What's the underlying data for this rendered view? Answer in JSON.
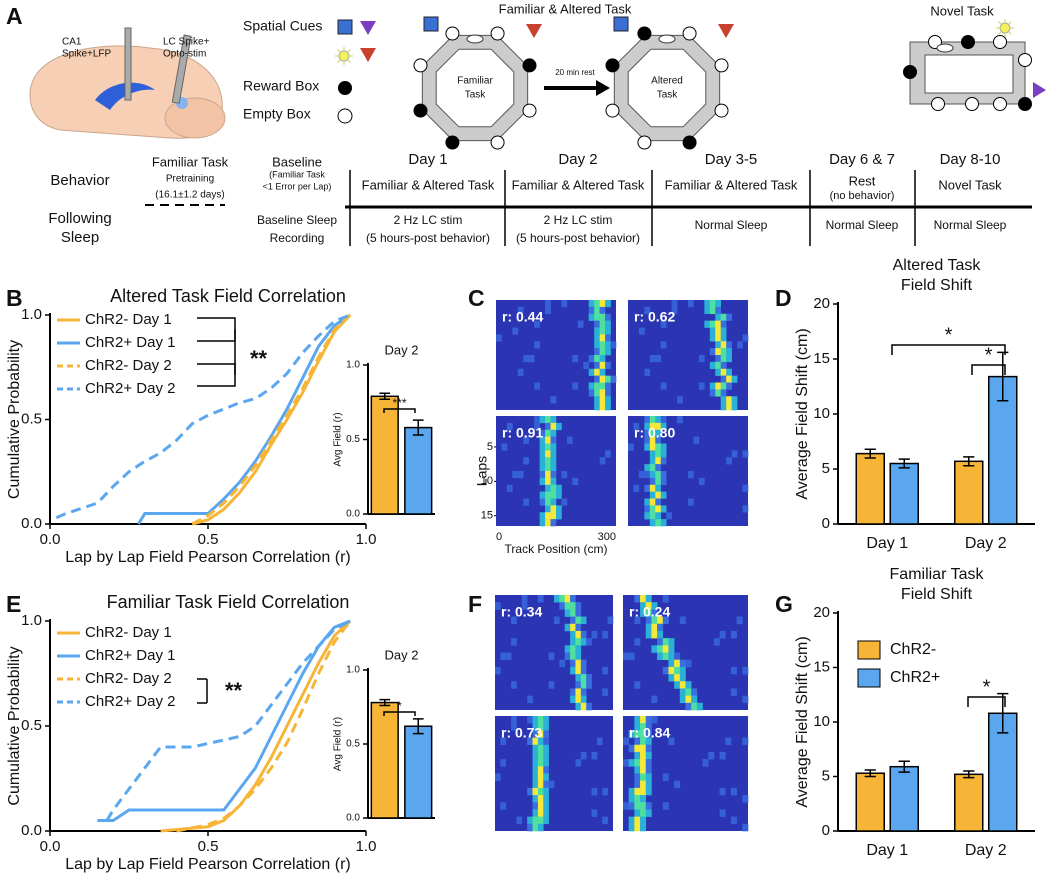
{
  "panel_labels": [
    "A",
    "B",
    "C",
    "D",
    "E",
    "F",
    "G"
  ],
  "panel_a": {
    "probe1": [
      "CA1",
      "Spike+LFP"
    ],
    "probe2": [
      "LC Spike+",
      "Opto-stim"
    ],
    "cues_label": "Spatial Cues",
    "reward_label": "Reward Box",
    "empty_label": "Empty Box",
    "task_title": "Familiar & Altered Task",
    "familiar": [
      "Familiar",
      "Task"
    ],
    "rest": "20 min rest",
    "altered": [
      "Altered",
      "Task"
    ],
    "novel": "Novel Task",
    "rows": [
      "Behavior",
      "Following",
      "Sleep"
    ],
    "timeline": [
      {
        "header": [
          "Familiar Task",
          "Pretraining",
          "(16.1±1.2 days)"
        ],
        "behavior": [],
        "sleep": []
      },
      {
        "header": [
          "Baseline",
          "(Familiar Task",
          "<1 Error per Lap)"
        ],
        "behavior": [],
        "sleep": [
          "Baseline Sleep",
          "Recording"
        ]
      },
      {
        "header": [
          "Day 1"
        ],
        "behavior": [
          "Familiar & Altered Task"
        ],
        "sleep": [
          "2 Hz LC stim",
          "(5 hours-post behavior)"
        ]
      },
      {
        "header": [
          "Day 2"
        ],
        "behavior": [
          "Familiar & Altered Task"
        ],
        "sleep": [
          "2 Hz LC stim",
          "(5 hours-post behavior)"
        ]
      },
      {
        "header": [
          "Day 3-5"
        ],
        "behavior": [
          "Familiar & Altered Task"
        ],
        "sleep": [
          "Normal Sleep"
        ]
      },
      {
        "header": [
          "Day 6 & 7"
        ],
        "behavior": [
          "Rest",
          "(no behavior)"
        ],
        "sleep": [
          "Normal Sleep"
        ]
      },
      {
        "header": [
          "Day 8-10"
        ],
        "behavior": [
          "Novel Task"
        ],
        "sleep": [
          "Normal Sleep"
        ]
      }
    ]
  },
  "heatmaps": {
    "C": {
      "r_labels": [
        "r: 0.44",
        "r: 0.62",
        "r: 0.91",
        "r: 0.80"
      ],
      "ylabel": "Laps",
      "yticks": [
        5,
        10,
        15
      ],
      "xticks": [
        0,
        300
      ],
      "xlabel": "Track Position (cm)"
    },
    "F": {
      "r_labels": [
        "r: 0.34",
        "r: 0.24",
        "r: 0.73",
        "r: 0.84"
      ]
    }
  },
  "chart_data": [
    {
      "type": "line",
      "title": "Altered Task Field Correlation",
      "xlabel": "Lap by Lap Field Pearson Correlation (r)",
      "ylabel": "Cumulative Probability",
      "xlim": [
        0,
        1
      ],
      "xticks": [
        {
          "value": 0,
          "label": "0.0"
        },
        {
          "value": 0.5,
          "label": "0.5"
        },
        {
          "value": 1,
          "label": "1.0"
        }
      ],
      "ylim": [
        0,
        1
      ],
      "yticks": [
        {
          "value": 0,
          "label": "0.0"
        },
        {
          "value": 0.5,
          "label": "0.5"
        },
        {
          "value": 1,
          "label": "1.0"
        }
      ],
      "annotations": [
        "**"
      ],
      "series": [
        {
          "name": "ChR2- Day 1",
          "color": "#f7b538",
          "dash": false,
          "x": [
            0.45,
            0.5,
            0.55,
            0.6,
            0.65,
            0.7,
            0.75,
            0.8,
            0.85,
            0.9,
            0.95
          ],
          "values": [
            0,
            0.02,
            0.07,
            0.15,
            0.25,
            0.38,
            0.5,
            0.63,
            0.78,
            0.92,
            1
          ]
        },
        {
          "name": "ChR2+ Day 1",
          "color": "#5aa7f0",
          "dash": false,
          "x": [
            0.28,
            0.3,
            0.5,
            0.55,
            0.6,
            0.65,
            0.7,
            0.75,
            0.8,
            0.85,
            0.9,
            0.95
          ],
          "values": [
            0,
            0.05,
            0.05,
            0.12,
            0.2,
            0.3,
            0.42,
            0.55,
            0.7,
            0.85,
            0.95,
            1
          ]
        },
        {
          "name": "ChR2- Day 2",
          "color": "#f7b538",
          "dash": true,
          "x": [
            0.45,
            0.5,
            0.55,
            0.6,
            0.65,
            0.7,
            0.75,
            0.8,
            0.85,
            0.9,
            0.95
          ],
          "values": [
            0,
            0.04,
            0.1,
            0.18,
            0.28,
            0.4,
            0.52,
            0.65,
            0.8,
            0.93,
            1
          ]
        },
        {
          "name": "ChR2+ Day 2",
          "color": "#5aa7f0",
          "dash": true,
          "x": [
            0.02,
            0.05,
            0.15,
            0.2,
            0.25,
            0.3,
            0.35,
            0.4,
            0.45,
            0.5,
            0.55,
            0.6,
            0.65,
            0.7,
            0.75,
            0.8,
            0.85,
            0.9,
            0.95
          ],
          "values": [
            0.03,
            0.05,
            0.1,
            0.18,
            0.25,
            0.3,
            0.34,
            0.4,
            0.48,
            0.52,
            0.55,
            0.58,
            0.6,
            0.65,
            0.72,
            0.82,
            0.9,
            0.97,
            1
          ]
        }
      ]
    },
    {
      "type": "bar",
      "title": "Day 2",
      "ylabel": "Avg Field (r)",
      "values": [
        0.79,
        0.58
      ],
      "errors": [
        0.02,
        0.05
      ],
      "colors": [
        "#f7b538",
        "#5aa7f0"
      ],
      "ylim": [
        0,
        1
      ],
      "yticks": [
        {
          "value": 0,
          "label": "0.0"
        },
        {
          "value": 0.5,
          "label": "0.5"
        },
        {
          "value": 1,
          "label": "1.0"
        }
      ],
      "annotations": [
        "***"
      ]
    },
    {
      "type": "bar",
      "title": [
        "Altered Task",
        "Field Shift"
      ],
      "ylabel": "Average Field Shift (cm)",
      "categories": [
        "Day 1",
        "Day 2"
      ],
      "legend": false,
      "series": [
        {
          "name": "ChR2-",
          "color": "#f7b538",
          "values": [
            6.4,
            5.7
          ],
          "errors": [
            0.4,
            0.4
          ]
        },
        {
          "name": "ChR2+",
          "color": "#5aa7f0",
          "values": [
            5.5,
            13.4
          ],
          "errors": [
            0.4,
            2.2
          ]
        }
      ],
      "ylim": [
        0,
        20
      ],
      "yticks": [
        0,
        5,
        10,
        15,
        20
      ],
      "annotations": [
        "*",
        "*"
      ]
    },
    {
      "type": "line",
      "title": "Familiar Task Field Correlation",
      "xlabel": "Lap by Lap Field Pearson Correlation (r)",
      "ylabel": "Cumulative Probability",
      "xlim": [
        0,
        1
      ],
      "xticks": [
        {
          "value": 0,
          "label": "0.0"
        },
        {
          "value": 0.5,
          "label": "0.5"
        },
        {
          "value": 1,
          "label": "1.0"
        }
      ],
      "ylim": [
        0,
        1
      ],
      "yticks": [
        {
          "value": 0,
          "label": "0.0"
        },
        {
          "value": 0.5,
          "label": "0.5"
        },
        {
          "value": 1,
          "label": "1.0"
        }
      ],
      "annotations": [
        "**"
      ],
      "series": [
        {
          "name": "ChR2- Day 1",
          "color": "#f7b538",
          "dash": false,
          "x": [
            0.35,
            0.5,
            0.55,
            0.6,
            0.65,
            0.7,
            0.75,
            0.8,
            0.85,
            0.9,
            0.95
          ],
          "values": [
            0,
            0.02,
            0.05,
            0.12,
            0.22,
            0.35,
            0.5,
            0.65,
            0.8,
            0.93,
            1
          ]
        },
        {
          "name": "ChR2+ Day 1",
          "color": "#5aa7f0",
          "dash": false,
          "x": [
            0.15,
            0.2,
            0.25,
            0.55,
            0.6,
            0.65,
            0.7,
            0.75,
            0.8,
            0.85,
            0.9,
            0.95
          ],
          "values": [
            0.05,
            0.05,
            0.1,
            0.1,
            0.2,
            0.3,
            0.45,
            0.6,
            0.75,
            0.88,
            0.97,
            1
          ]
        },
        {
          "name": "ChR2- Day 2",
          "color": "#f7b538",
          "dash": true,
          "x": [
            0.4,
            0.5,
            0.55,
            0.6,
            0.65,
            0.7,
            0.75,
            0.8,
            0.85,
            0.9,
            0.95
          ],
          "values": [
            0,
            0.03,
            0.06,
            0.12,
            0.2,
            0.3,
            0.42,
            0.58,
            0.75,
            0.9,
            1
          ]
        },
        {
          "name": "ChR2+ Day 2",
          "color": "#5aa7f0",
          "dash": true,
          "x": [
            0.18,
            0.2,
            0.25,
            0.3,
            0.35,
            0.45,
            0.6,
            0.65,
            0.7,
            0.75,
            0.8,
            0.85,
            0.9,
            0.95
          ],
          "values": [
            0.05,
            0.1,
            0.2,
            0.3,
            0.4,
            0.4,
            0.45,
            0.5,
            0.6,
            0.7,
            0.8,
            0.88,
            0.96,
            1
          ]
        }
      ]
    },
    {
      "type": "bar",
      "title": "Day 2",
      "ylabel": "Avg Field (r)",
      "values": [
        0.78,
        0.62
      ],
      "errors": [
        0.02,
        0.05
      ],
      "colors": [
        "#f7b538",
        "#5aa7f0"
      ],
      "ylim": [
        0,
        1
      ],
      "yticks": [
        {
          "value": 0,
          "label": "0.0"
        },
        {
          "value": 0.5,
          "label": "0.5"
        },
        {
          "value": 1,
          "label": "1.0"
        }
      ],
      "annotations": [
        "*"
      ]
    },
    {
      "type": "bar",
      "title": [
        "Familiar Task",
        "Field Shift"
      ],
      "ylabel": "Average Field Shift (cm)",
      "categories": [
        "Day 1",
        "Day 2"
      ],
      "legend": true,
      "series": [
        {
          "name": "ChR2-",
          "color": "#f7b538",
          "values": [
            5.3,
            5.2
          ],
          "errors": [
            0.3,
            0.3
          ]
        },
        {
          "name": "ChR2+",
          "color": "#5aa7f0",
          "values": [
            5.9,
            10.8
          ],
          "errors": [
            0.5,
            1.8
          ]
        }
      ],
      "ylim": [
        0,
        20
      ],
      "yticks": [
        0,
        5,
        10,
        15,
        20
      ],
      "annotations": [
        "*"
      ]
    }
  ]
}
